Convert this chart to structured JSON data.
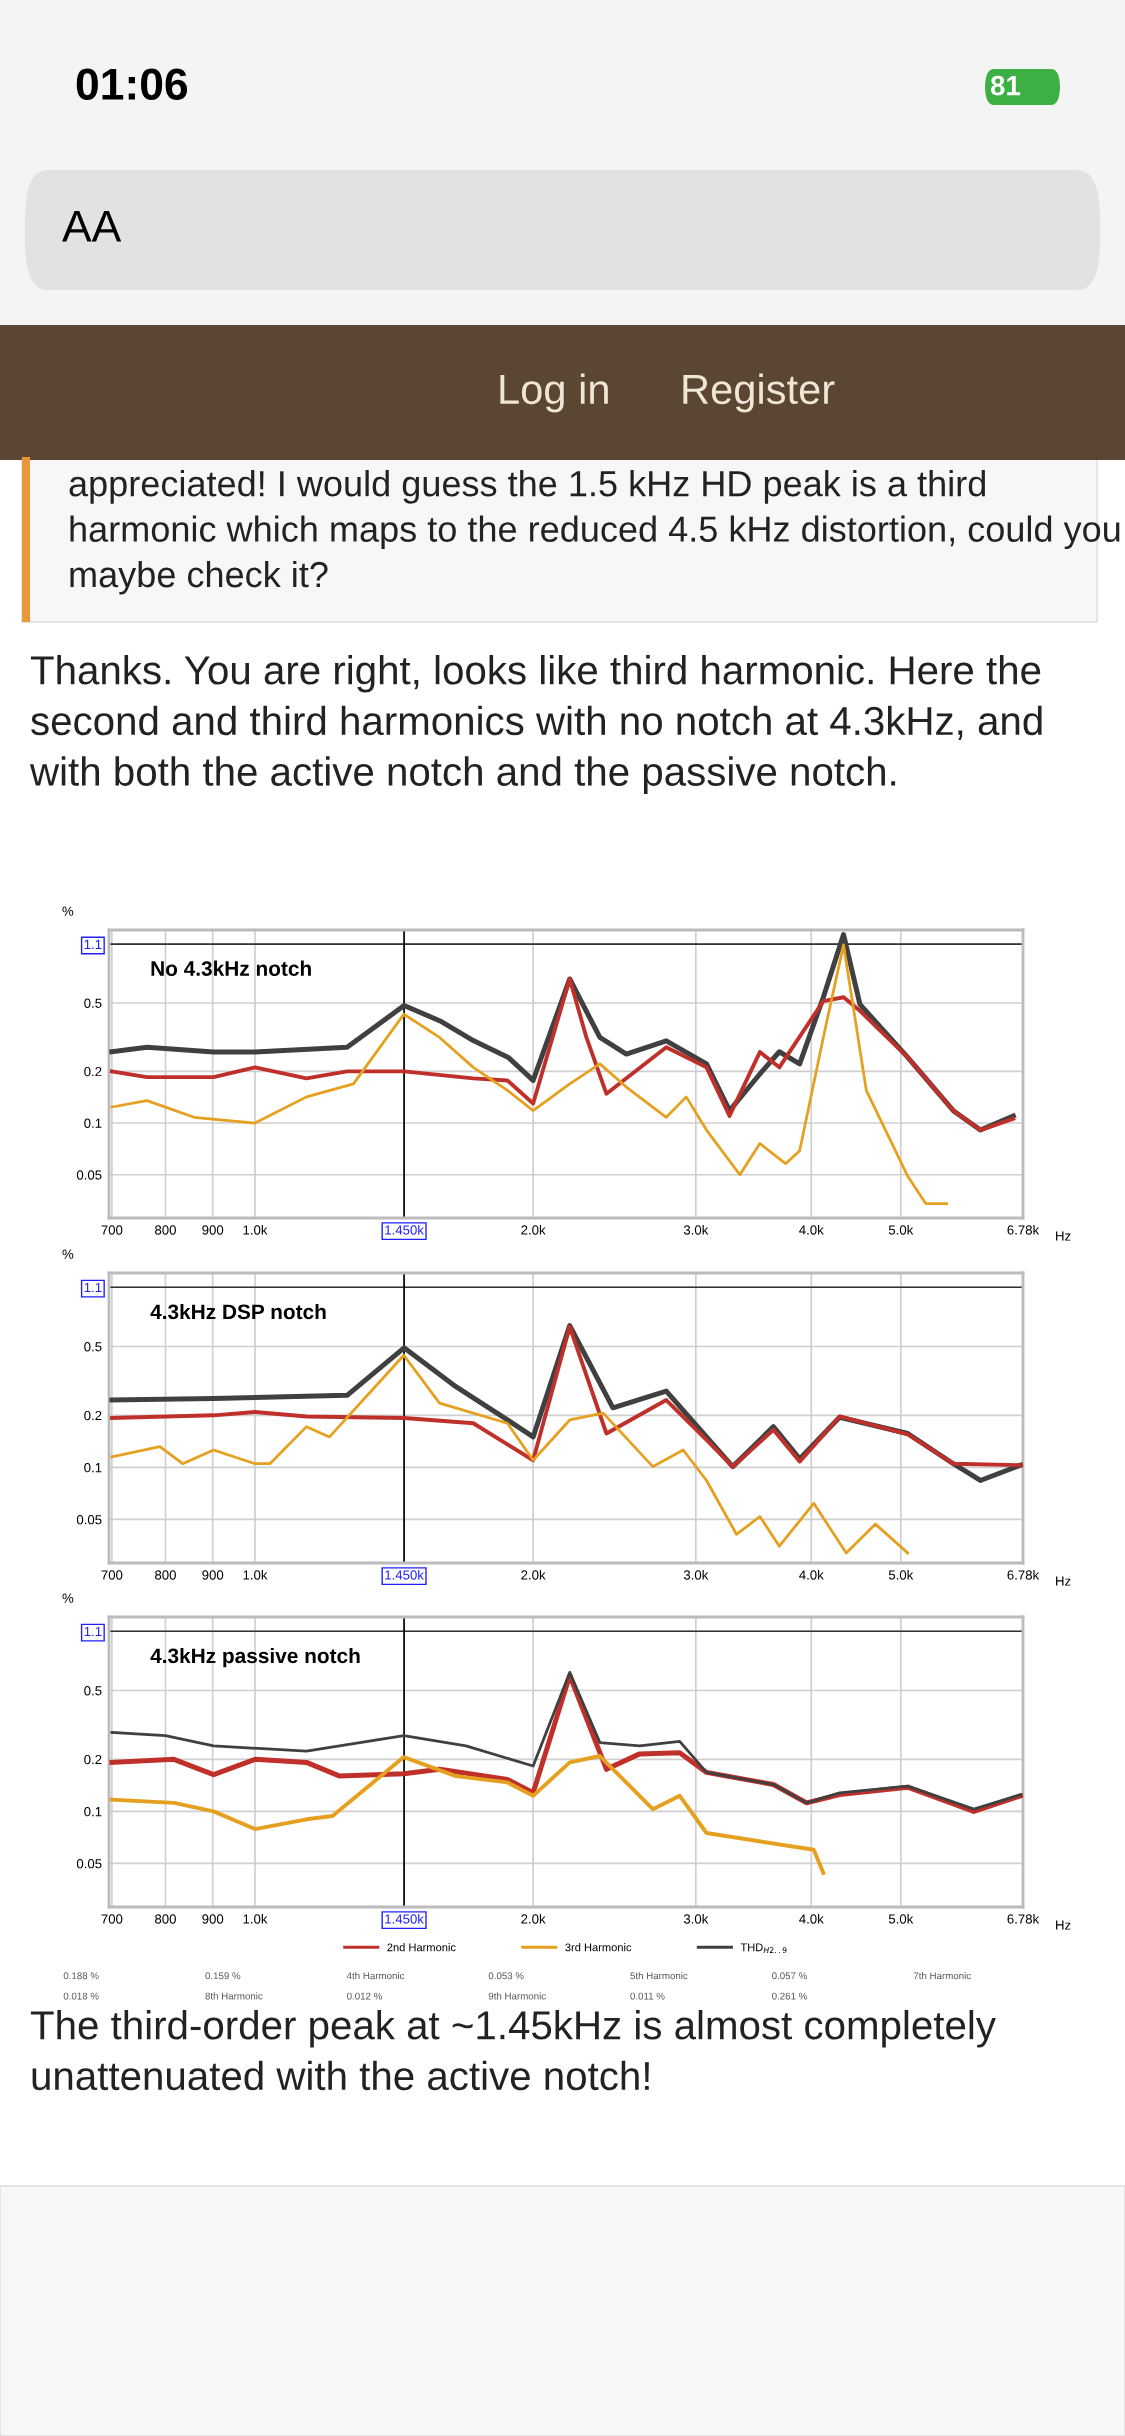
{
  "chart_data": [
    {
      "type": "line",
      "title": "No 4.3kHz notch",
      "ylabel": "%",
      "xlabel": "Hz",
      "log": "xy",
      "grid": true,
      "xlim": [
        695,
        6780
      ],
      "ylim": [
        0.028,
        1.33
      ],
      "xticks": [
        700,
        800,
        900,
        {
          "value": 1000,
          "label": "1.0k"
        },
        {
          "value": 1450,
          "label": "1.450k"
        },
        {
          "value": 2000,
          "label": "2.0k"
        },
        {
          "value": 3000,
          "label": "3.0k"
        },
        {
          "value": 4000,
          "label": "4.0k"
        },
        {
          "value": 5000,
          "label": "5.0k"
        },
        {
          "value": 6780,
          "label": "6.78k"
        }
      ],
      "yticks": [
        0.05,
        0.1,
        0.2,
        0.5,
        1.1
      ],
      "ref_lines": [
        {
          "axis": "y",
          "value": 1.1,
          "color": "#333333"
        },
        {
          "axis": "x",
          "value": 1450,
          "color": "#000000"
        }
      ],
      "annotations": [
        "01:06",
        "81",
        "AA",
        "Log in",
        "Register",
        "appreciated! I would guess the 1.5 kHz HD peak is a third harmonic which maps to the reduced 4.5 kHz distortion, could you maybe check it?",
        "Thanks. You are right, looks like third harmonic. Here the second and third harmonics with no notch at 4.3kHz, and with both the active notch and the passive notch.",
        "The third-order peak at ~1.45kHz is almost completely unattenuated with the active notch!"
      ],
      "series": [
        {
          "color": "#404040",
          "x": [
            700,
            764,
            902,
            1000,
            1258,
            1450,
            1586,
            1725,
            1880,
            2000,
            2191,
            2362,
            2523,
            2787,
            3081,
            3263,
            3519,
            3694,
            3886,
            4122,
            4335,
            4516,
            5087,
            5699,
            6097,
            6618
          ],
          "values": [
            0.26,
            0.276,
            0.259,
            0.259,
            0.276,
            0.483,
            0.393,
            0.301,
            0.241,
            0.177,
            0.69,
            0.315,
            0.252,
            0.301,
            0.221,
            0.118,
            0.193,
            0.26,
            0.221,
            0.54,
            1.25,
            0.491,
            0.241,
            0.118,
            0.091,
            0.11
          ]
        },
        {
          "color": "#c0302b",
          "x": [
            700,
            764,
            902,
            1000,
            1137,
            1258,
            1450,
            1723,
            1876,
            2000,
            2191,
            2284,
            2401,
            2787,
            3081,
            3263,
            3519,
            3694,
            4122,
            4335,
            4516,
            5087,
            5699,
            6097,
            6618
          ],
          "values": [
            0.2,
            0.185,
            0.185,
            0.211,
            0.182,
            0.2,
            0.2,
            0.182,
            0.177,
            0.13,
            0.69,
            0.315,
            0.148,
            0.276,
            0.211,
            0.11,
            0.259,
            0.211,
            0.513,
            0.54,
            0.45,
            0.241,
            0.118,
            0.091,
            0.106
          ]
        },
        {
          "color": "#e6a020",
          "x": [
            700,
            764,
            859,
            1000,
            1137,
            1278,
            1449,
            1584,
            1723,
            1876,
            2000,
            2191,
            2362,
            2523,
            2787,
            2929,
            3081,
            3348,
            3519,
            3752,
            3886,
            4122,
            4335,
            4588,
            5087,
            5320,
            5605
          ],
          "values": [
            0.124,
            0.135,
            0.108,
            0.1,
            0.142,
            0.169,
            0.43,
            0.315,
            0.211,
            0.155,
            0.118,
            0.169,
            0.221,
            0.162,
            0.108,
            0.142,
            0.091,
            0.05,
            0.076,
            0.058,
            0.069,
            0.315,
            1.09,
            0.155,
            0.049,
            0.034,
            0.034
          ]
        }
      ]
    },
    {
      "type": "line",
      "title": "4.3kHz DSP notch",
      "ylabel": "%",
      "xlabel": "Hz",
      "log": "xy",
      "grid": true,
      "xlim": [
        695,
        6780
      ],
      "ylim": [
        0.028,
        1.33
      ],
      "xticks": [
        700,
        800,
        900,
        {
          "value": 1000,
          "label": "1.0k"
        },
        {
          "value": 1450,
          "label": "1.450k"
        },
        {
          "value": 2000,
          "label": "2.0k"
        },
        {
          "value": 3000,
          "label": "3.0k"
        },
        {
          "value": 4000,
          "label": "4.0k"
        },
        {
          "value": 5000,
          "label": "5.0k"
        },
        {
          "value": 6780,
          "label": "6.78k"
        }
      ],
      "yticks": [
        0.05,
        0.1,
        0.2,
        0.5,
        1.1
      ],
      "ref_lines": [
        {
          "axis": "y",
          "value": 1.1,
          "color": "#333333"
        },
        {
          "axis": "x",
          "value": 1450,
          "color": "#000000"
        }
      ],
      "series": [
        {
          "color": "#404040",
          "x": [
            700,
            902,
            1258,
            1450,
            1650,
            1876,
            2000,
            2191,
            2440,
            2787,
            3081,
            3289,
            3640,
            3886,
            4293,
            5087,
            5699,
            6097,
            6740
          ],
          "values": [
            0.245,
            0.25,
            0.261,
            0.491,
            0.293,
            0.188,
            0.15,
            0.66,
            0.221,
            0.276,
            0.15,
            0.101,
            0.172,
            0.112,
            0.195,
            0.157,
            0.105,
            0.084,
            0.103
          ]
        },
        {
          "color": "#c0302b",
          "x": [
            700,
            902,
            1000,
            1137,
            1450,
            1723,
            2000,
            2191,
            2401,
            2787,
            3081,
            3289,
            3640,
            3886,
            4293,
            5087,
            5699,
            6740
          ],
          "values": [
            0.193,
            0.2,
            0.209,
            0.197,
            0.193,
            0.18,
            0.11,
            0.65,
            0.157,
            0.245,
            0.144,
            0.101,
            0.165,
            0.108,
            0.197,
            0.155,
            0.105,
            0.103
          ]
        },
        {
          "color": "#e6a020",
          "x": [
            700,
            789,
            835,
            902,
            1000,
            1038,
            1137,
            1204,
            1449,
            1584,
            1876,
            2000,
            2191,
            2382,
            2695,
            2907,
            3081,
            3320,
            3519,
            3694,
            4025,
            4364,
            4694,
            5087
          ],
          "values": [
            0.115,
            0.132,
            0.105,
            0.126,
            0.105,
            0.105,
            0.172,
            0.15,
            0.445,
            0.235,
            0.18,
            0.11,
            0.188,
            0.206,
            0.101,
            0.126,
            0.084,
            0.041,
            0.052,
            0.035,
            0.062,
            0.032,
            0.047,
            0.032
          ]
        }
      ]
    },
    {
      "type": "line",
      "title": "4.3kHz passive notch",
      "ylabel": "%",
      "xlabel": "Hz",
      "log": "xy",
      "grid": true,
      "xlim": [
        695,
        6780
      ],
      "ylim": [
        0.028,
        1.33
      ],
      "xticks": [
        700,
        800,
        900,
        {
          "value": 1000,
          "label": "1.0k"
        },
        {
          "value": 1450,
          "label": "1.450k"
        },
        {
          "value": 2000,
          "label": "2.0k"
        },
        {
          "value": 3000,
          "label": "3.0k"
        },
        {
          "value": 4000,
          "label": "4.0k"
        },
        {
          "value": 5000,
          "label": "5.0k"
        },
        {
          "value": 6780,
          "label": "6.78k"
        }
      ],
      "yticks": [
        0.05,
        0.1,
        0.2,
        0.5,
        1.1
      ],
      "ref_lines": [
        {
          "axis": "y",
          "value": 1.1,
          "color": "#333333"
        },
        {
          "axis": "x",
          "value": 1450,
          "color": "#000000"
        }
      ],
      "legend": "bottom",
      "annotations": [
        "0.188 %",
        "0.159 %",
        "4th Harmonic",
        "0.053 %",
        "5th Harmonic",
        "0.057 %",
        "7th Harmonic",
        "0.018 %",
        "8th Harmonic",
        "0.012 %",
        "9th Harmonic",
        "0.011 %",
        "0.261 %"
      ],
      "series": [
        {
          "name": "2nd Harmonic",
          "color": "#c0302b",
          "x": [
            700,
            817,
            902,
            1000,
            1137,
            1235,
            1449,
            1584,
            1876,
            2000,
            2191,
            2401,
            2608,
            2882,
            3081,
            3640,
            3954,
            4293,
            5087,
            5999,
            6740
          ],
          "values": [
            0.192,
            0.2,
            0.163,
            0.2,
            0.192,
            0.16,
            0.165,
            0.175,
            0.153,
            0.128,
            0.61,
            0.175,
            0.215,
            0.218,
            0.168,
            0.143,
            0.112,
            0.125,
            0.138,
            0.1,
            0.123
          ]
        },
        {
          "name": "3rd Harmonic",
          "color": "#e6a020",
          "x": [
            700,
            817,
            902,
            1000,
            1137,
            1213,
            1449,
            1650,
            1876,
            2000,
            2191,
            2362,
            2695,
            2882,
            3081,
            4025,
            4122
          ],
          "values": [
            0.117,
            0.112,
            0.1,
            0.079,
            0.09,
            0.094,
            0.206,
            0.16,
            0.147,
            0.123,
            0.192,
            0.209,
            0.103,
            0.123,
            0.075,
            0.06,
            0.044
          ]
        },
        {
          "name": "THD$_{H2..9}$",
          "color": "#404040",
          "x": [
            700,
            800,
            902,
            1137,
            1449,
            1692,
            2000,
            2191,
            2362,
            2608,
            2882,
            3081,
            3640,
            3954,
            4293,
            5087,
            5999,
            6740
          ],
          "values": [
            0.286,
            0.274,
            0.239,
            0.223,
            0.274,
            0.239,
            0.183,
            0.636,
            0.25,
            0.239,
            0.254,
            0.168,
            0.143,
            0.112,
            0.128,
            0.14,
            0.103,
            0.125
          ]
        }
      ]
    }
  ]
}
